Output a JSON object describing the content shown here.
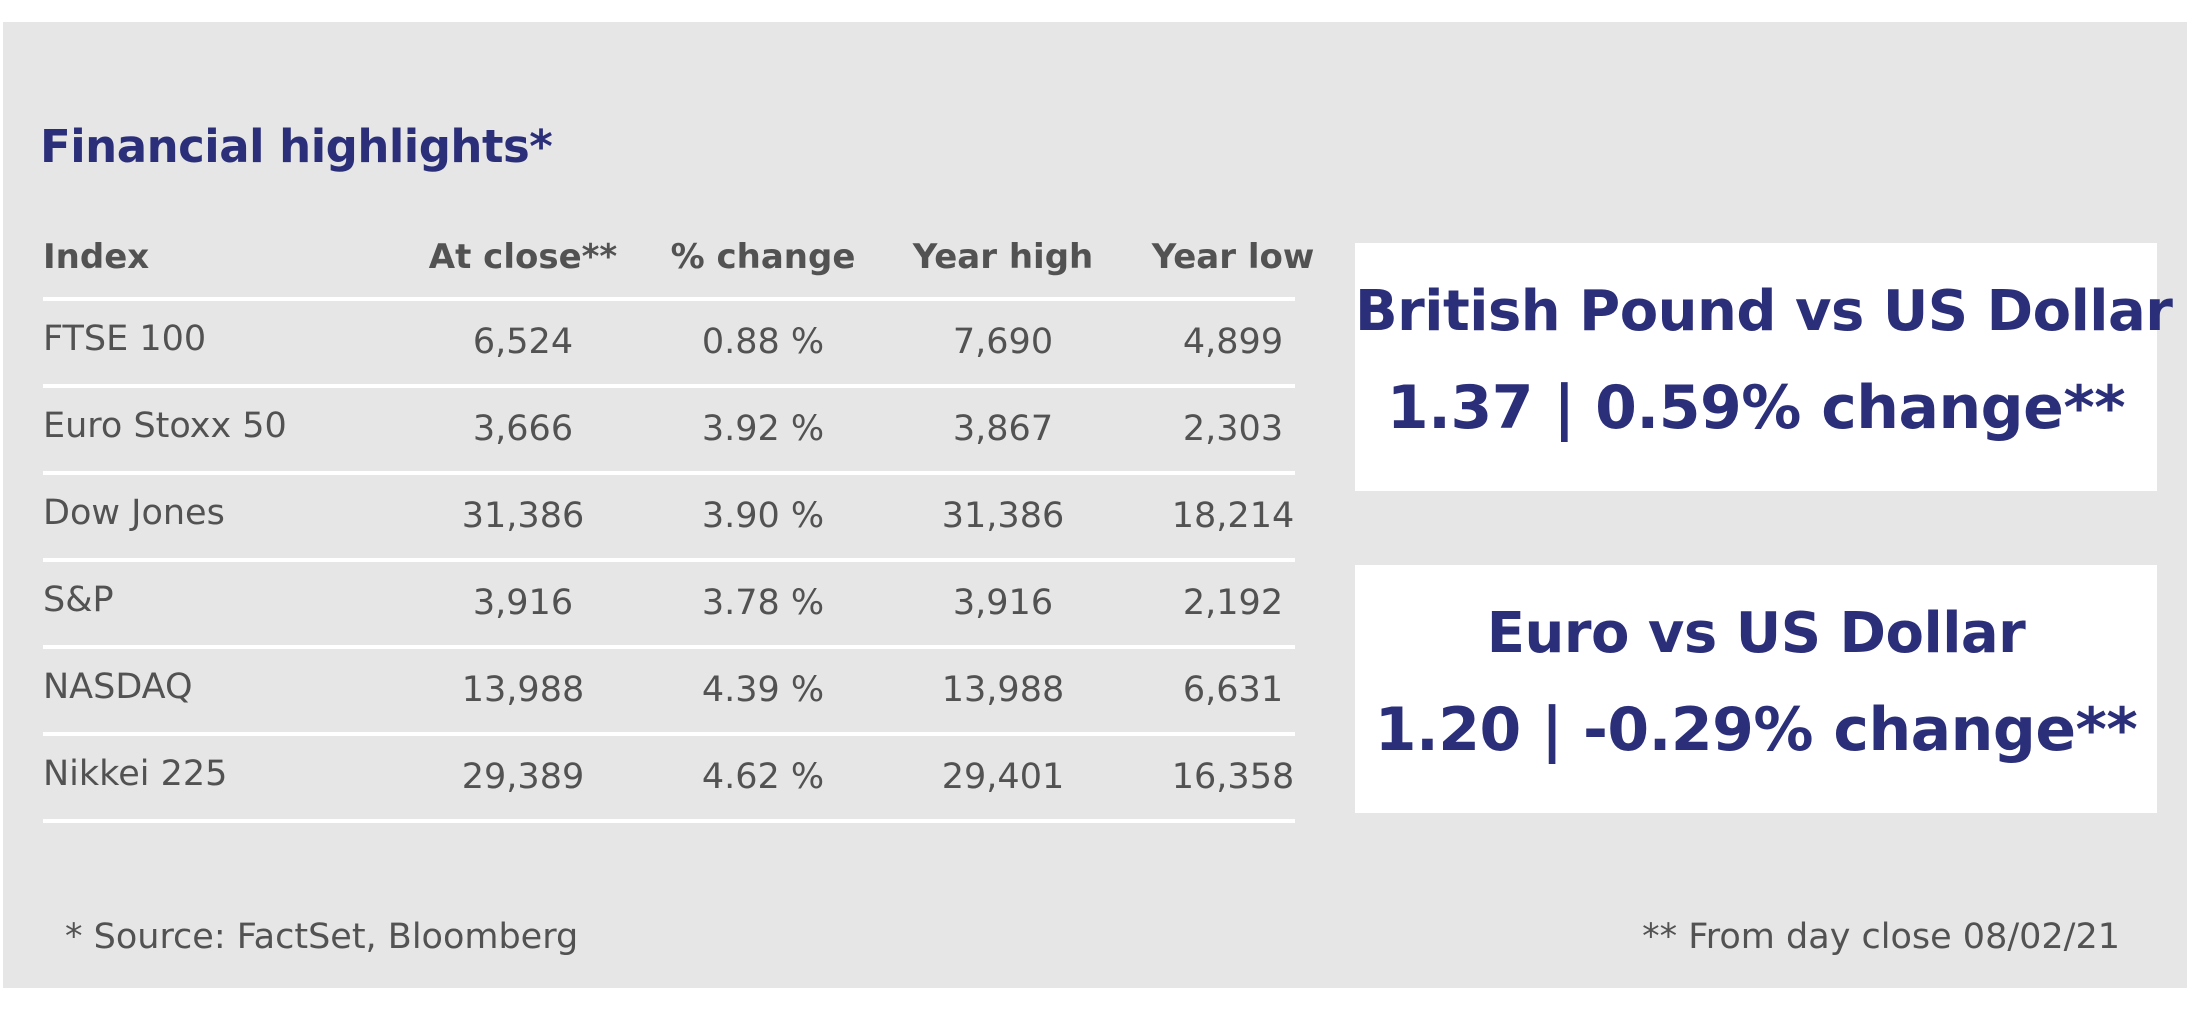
{
  "title": "Financial highlights*",
  "table": {
    "headers": [
      "Index",
      "At close**",
      "% change",
      "Year high",
      "Year low"
    ],
    "rows": [
      [
        "FTSE 100",
        "6,524",
        "0.88 %",
        "7,690",
        "4,899"
      ],
      [
        "Euro Stoxx 50",
        "3,666",
        "3.92 %",
        "3,867",
        "2,303"
      ],
      [
        "Dow Jones",
        "31,386",
        "3.90 %",
        "31,386",
        "18,214"
      ],
      [
        "S&P",
        "3,916",
        "3.78 %",
        "3,916",
        "2,192"
      ],
      [
        "NASDAQ",
        "13,988",
        "4.39 %",
        "13,988",
        "6,631"
      ],
      [
        "Nikkei 225",
        "29,389",
        "4.62 %",
        "29,401",
        "16,358"
      ]
    ]
  },
  "rates": {
    "gbp": {
      "title": "British Pound vs US Dollar",
      "value": "1.37 | 0.59% change**"
    },
    "eur": {
      "title": "Euro vs US Dollar",
      "value": "1.20 | -0.29% change**"
    }
  },
  "footnotes": {
    "source": "* Source: FactSet, Bloomberg",
    "date": "** From day close 08/02/21"
  },
  "colors": {
    "accent": "#2b2f7a",
    "panel_bg": "#e6e6e6",
    "text": "#525252"
  }
}
